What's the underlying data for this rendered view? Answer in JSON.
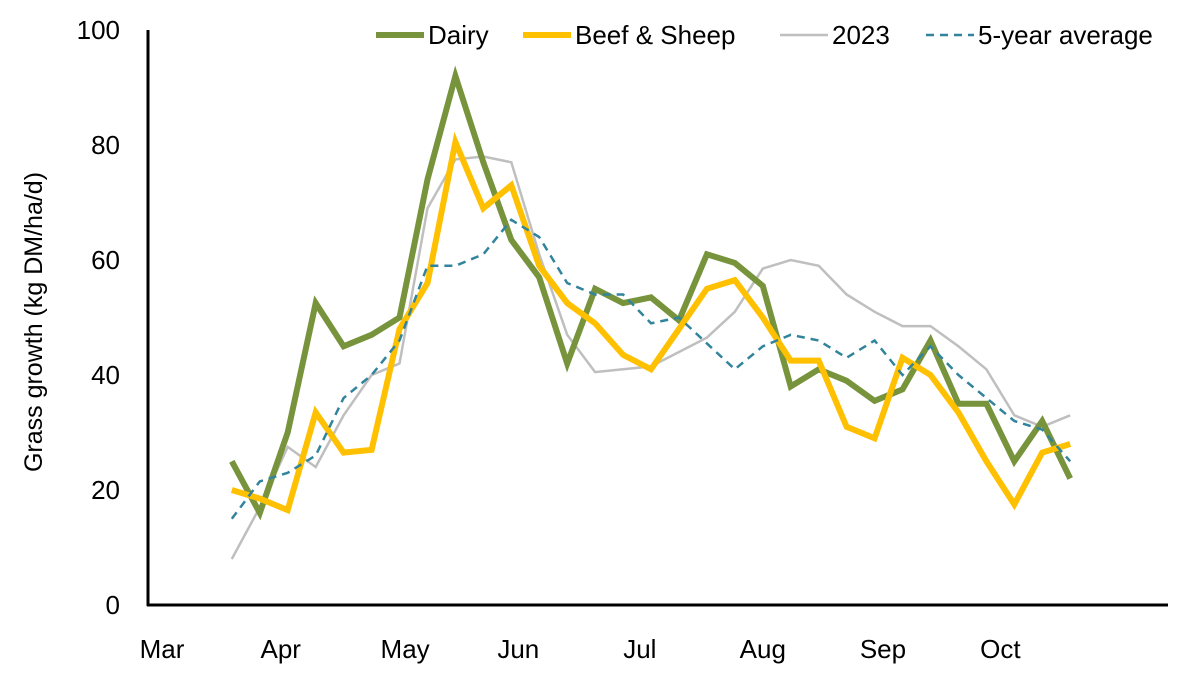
{
  "chart_data": {
    "type": "line",
    "title": "",
    "ylabel": "Grass growth (kg DM/ha/d)",
    "xlabel": "",
    "ylim": [
      0,
      100
    ],
    "y_ticks": [
      "0",
      "20",
      "40",
      "60",
      "80",
      "100"
    ],
    "x_ticks": [
      {
        "label": "Mar",
        "x": 0
      },
      {
        "label": "Apr",
        "x": 4.25
      },
      {
        "label": "May",
        "x": 8.7
      },
      {
        "label": "Jun",
        "x": 12.75
      },
      {
        "label": "Jul",
        "x": 17.1
      },
      {
        "label": "Aug",
        "x": 21.5
      },
      {
        "label": "Sep",
        "x": 25.8
      },
      {
        "label": "Oct",
        "x": 30.0
      }
    ],
    "xlim": [
      -0.5,
      36
    ],
    "legend_position": "top",
    "series": [
      {
        "name": "Dairy",
        "color": "#77933C",
        "style": "thick",
        "x": [
          2.5,
          3.5,
          4.5,
          5.5,
          6.5,
          7.5,
          8.5,
          9.5,
          10.5,
          11.5,
          12.5,
          13.5,
          14.5,
          15.5,
          16.5,
          17.5,
          18.5,
          19.5,
          20.5,
          21.5,
          22.5,
          23.5,
          24.5,
          25.5,
          26.5,
          27.5,
          28.5,
          29.5,
          30.5,
          31.5,
          32.5
        ],
        "values": [
          25,
          16,
          30,
          52.5,
          45,
          47,
          50,
          74,
          92,
          77,
          63.5,
          57,
          42,
          55,
          52.5,
          53.5,
          49.5,
          61,
          59.5,
          55.5,
          38,
          41,
          39,
          35.5,
          37.5,
          46,
          35,
          35,
          25,
          32,
          22
        ]
      },
      {
        "name": "Beef & Sheep",
        "color": "#FFC000",
        "style": "thick",
        "x": [
          2.5,
          3.5,
          4.5,
          5.5,
          6.5,
          7.5,
          8.5,
          9.5,
          10.5,
          11.5,
          12.5,
          13.5,
          14.5,
          15.5,
          16.5,
          17.5,
          18.5,
          19.5,
          20.5,
          21.5,
          22.5,
          23.5,
          24.5,
          25.5,
          26.5,
          27.5,
          28.5,
          29.5,
          30.5,
          31.5,
          32.5
        ],
        "values": [
          20,
          18.5,
          16.5,
          33.5,
          26.5,
          27,
          48,
          56,
          80.5,
          69,
          73,
          59,
          52.5,
          49,
          43.5,
          41,
          48,
          55,
          56.5,
          50,
          42.5,
          42.5,
          31,
          29,
          43,
          40,
          33.5,
          25,
          17.5,
          26.5,
          28
        ]
      },
      {
        "name": "2023",
        "color": "#BFBFBF",
        "style": "thin",
        "x": [
          2.5,
          3.5,
          4.5,
          5.5,
          6.5,
          7.5,
          8.5,
          9.5,
          10.5,
          11.5,
          12.5,
          13.5,
          14.5,
          15.5,
          16.5,
          17.5,
          18.5,
          19.5,
          20.5,
          21.5,
          22.5,
          23.5,
          24.5,
          25.5,
          26.5,
          27.5,
          28.5,
          29.5,
          30.5,
          31.5,
          32.5
        ],
        "values": [
          8,
          17,
          27.5,
          24,
          33,
          40,
          42,
          69,
          77.5,
          78,
          77,
          61,
          47,
          40.5,
          41,
          41.5,
          44,
          46.5,
          51,
          58.5,
          60,
          59,
          54,
          51,
          48.5,
          48.5,
          45,
          41,
          33,
          31,
          33
        ]
      },
      {
        "name": "5-year average",
        "color": "#31849B",
        "style": "dashed",
        "x": [
          2.5,
          3.5,
          4.5,
          5.5,
          6.5,
          7.5,
          8.5,
          9.5,
          10.5,
          11.5,
          12.5,
          13.5,
          14.5,
          15.5,
          16.5,
          17.5,
          18.5,
          19.5,
          20.5,
          21.5,
          22.5,
          23.5,
          24.5,
          25.5,
          26.5,
          27.5,
          28.5,
          29.5,
          30.5,
          31.5,
          32.5
        ],
        "values": [
          15,
          21.5,
          23,
          26,
          36,
          40,
          46,
          59,
          59,
          61,
          67,
          64,
          56,
          54,
          54,
          49,
          50,
          45.5,
          41,
          45,
          47,
          46,
          43,
          46,
          40,
          45,
          40,
          36,
          32,
          30.5,
          25
        ]
      }
    ]
  }
}
